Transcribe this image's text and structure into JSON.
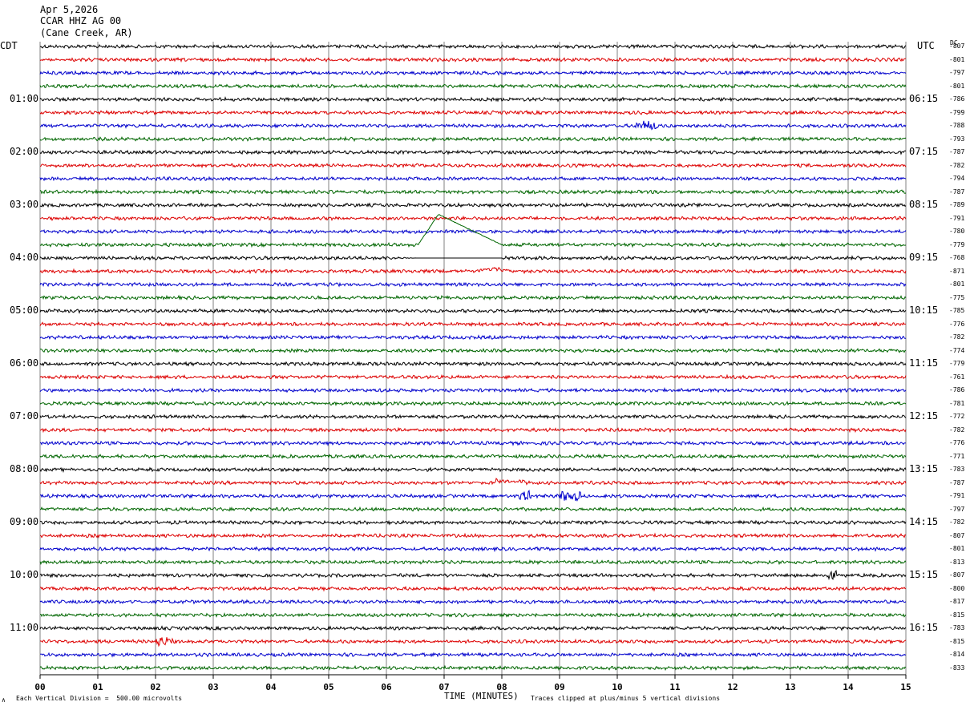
{
  "header": {
    "date": "Apr 5,2026",
    "station": "CCAR HHZ AG 00",
    "location": "(Cane Creek, AR)"
  },
  "labels": {
    "left_tz": "CDT",
    "right_tz": "UTC",
    "dc": "DC",
    "xlabel": "TIME (MINUTES)",
    "scale_note": "Each Vertical Division =  500.00 microvolts",
    "clip_note": "Traces clipped at plus/minus 5 vertical divisions",
    "corner_mark": "∧"
  },
  "colors": {
    "trace_cycle": [
      "#000000",
      "#dd0000",
      "#0000cc",
      "#006600"
    ],
    "grid": "#808080"
  },
  "chart_data": {
    "type": "line",
    "title": "CCAR HHZ AG 00",
    "xlabel": "TIME (MINUTES)",
    "xlim": [
      0,
      15
    ],
    "x_ticks": [
      "00",
      "01",
      "02",
      "03",
      "04",
      "05",
      "06",
      "07",
      "08",
      "09",
      "10",
      "11",
      "12",
      "13",
      "14",
      "15"
    ],
    "trace_count": 48,
    "local_hour_labels": [
      {
        "trace": 4,
        "text": "01:00"
      },
      {
        "trace": 8,
        "text": "02:00"
      },
      {
        "trace": 12,
        "text": "03:00"
      },
      {
        "trace": 16,
        "text": "04:00"
      },
      {
        "trace": 20,
        "text": "05:00"
      },
      {
        "trace": 24,
        "text": "06:00"
      },
      {
        "trace": 28,
        "text": "07:00"
      },
      {
        "trace": 32,
        "text": "08:00"
      },
      {
        "trace": 36,
        "text": "09:00"
      },
      {
        "trace": 40,
        "text": "10:00"
      },
      {
        "trace": 44,
        "text": "11:00"
      }
    ],
    "utc_hour_labels": [
      {
        "trace": 4,
        "text": "06:15"
      },
      {
        "trace": 8,
        "text": "07:15"
      },
      {
        "trace": 12,
        "text": "08:15"
      },
      {
        "trace": 16,
        "text": "09:15"
      },
      {
        "trace": 20,
        "text": "10:15"
      },
      {
        "trace": 24,
        "text": "11:15"
      },
      {
        "trace": 28,
        "text": "12:15"
      },
      {
        "trace": 32,
        "text": "13:15"
      },
      {
        "trace": 36,
        "text": "14:15"
      },
      {
        "trace": 40,
        "text": "15:15"
      },
      {
        "trace": 44,
        "text": "16:15"
      }
    ],
    "dc_offsets": [
      "-807",
      "-801",
      "-797",
      "-801",
      "-786",
      "-799",
      "-788",
      "-793",
      "-787",
      "-782",
      "-794",
      "-787",
      "-789",
      "-791",
      "-780",
      "-779",
      "-768",
      "-871",
      "-801",
      "-775",
      "-785",
      "-776",
      "-782",
      "-774",
      "-779",
      "-761",
      "-786",
      "-781",
      "-772",
      "-782",
      "-776",
      "-771",
      "-783",
      "-787",
      "-791",
      "-797",
      "-782",
      "-807",
      "-801",
      "-813",
      "-807",
      "-800",
      "-817",
      "-815",
      "-783",
      "-815",
      "-814",
      "-833"
    ],
    "events": [
      {
        "trace": 15,
        "type": "clipped_pulse",
        "start_min": 6.55,
        "peak_min": 6.9,
        "end_min": 8.0
      },
      {
        "trace": 16,
        "type": "offset",
        "start_min": 0.0,
        "end_min": 8.0
      },
      {
        "trace": 17,
        "type": "bump",
        "start_min": 7.4,
        "end_min": 8.3
      },
      {
        "trace": 6,
        "type": "burst",
        "start_min": 10.3,
        "end_min": 10.7
      },
      {
        "trace": 33,
        "type": "step",
        "start_min": 7.9,
        "end_min": 8.4
      },
      {
        "trace": 34,
        "type": "burst",
        "start_min": 8.3,
        "end_min": 8.5
      },
      {
        "trace": 34,
        "type": "burst",
        "start_min": 9.0,
        "end_min": 9.4
      },
      {
        "trace": 40,
        "type": "burst",
        "start_min": 13.6,
        "end_min": 13.8
      },
      {
        "trace": 45,
        "type": "burst",
        "start_min": 2.0,
        "end_min": 2.3
      }
    ]
  }
}
